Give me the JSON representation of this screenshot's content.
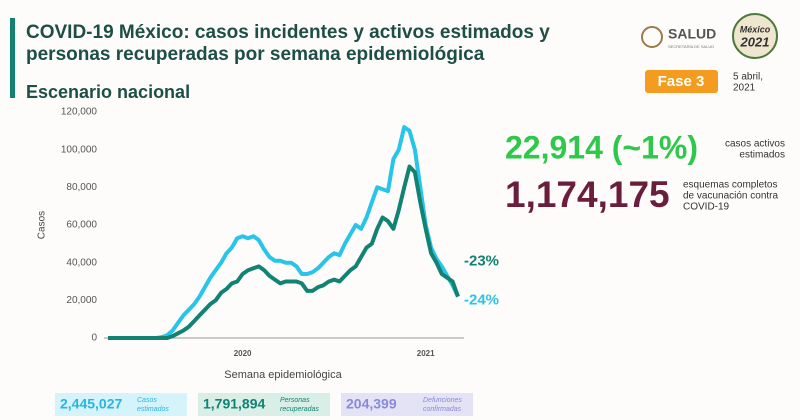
{
  "header": {
    "title_lines": [
      "COVID-19 México: casos incidentes y activos estimados y",
      "personas recuperadas por semana epidemiológica"
    ],
    "subtitle": "Escenario nacional",
    "logo": "SALUD",
    "logo_caption": "SECRETARÍA DE SALUD",
    "emblem_lines": [
      "México",
      "2021"
    ],
    "phase": "Fase 3",
    "date_lines": [
      "5 abril,",
      "2021"
    ]
  },
  "stats": [
    {
      "value": "22,914 (~1%)",
      "color": "#2ec84a",
      "caption_lines": [
        "casos activos",
        "estimados"
      ]
    },
    {
      "value": "1,174,175",
      "color": "#6b1e3c",
      "caption_lines": [
        "esquemas completos",
        "de vacunación contra",
        "COVID-19"
      ]
    }
  ],
  "footer": [
    {
      "value": "2,445,027",
      "caption_lines": [
        "Casos",
        "estimados"
      ],
      "color": "#2ab5de",
      "background": "#d5f3fb"
    },
    {
      "value": "1,791,894",
      "caption_lines": [
        "Personas",
        "recuperadas"
      ],
      "color": "#128273",
      "background": "#d8eee6"
    },
    {
      "value": "204,399",
      "caption_lines": [
        "Defunciones",
        "confirmadas"
      ],
      "color": "#8a8ad8",
      "background": "#e3e3f5"
    }
  ],
  "chart_data": {
    "type": "line",
    "x_label": "Semana epidemiológica",
    "y_label": "Casos",
    "categories": [
      null,
      null,
      null,
      null,
      null,
      null,
      null,
      null,
      null,
      null,
      null,
      null,
      null,
      null,
      null,
      null,
      null,
      null,
      null,
      null,
      null,
      null,
      null,
      null,
      null,
      "2020",
      null,
      null,
      null,
      null,
      null,
      null,
      null,
      null,
      null,
      null,
      null,
      null,
      null,
      null,
      null,
      null,
      null,
      null,
      null,
      null,
      null,
      null,
      null,
      null,
      null,
      null,
      null,
      null,
      null,
      null,
      null,
      null,
      null,
      "2021",
      null,
      null,
      null,
      null,
      null,
      null
    ],
    "ylim": [
      0,
      120000
    ],
    "yticks": [
      0,
      {
        "value": 20000,
        "label": "20,000"
      },
      {
        "value": 40000,
        "label": "40,000"
      },
      {
        "value": 60000,
        "label": "60,000"
      },
      {
        "value": 80000,
        "label": "80,000"
      },
      {
        "value": 100000,
        "label": "100,000"
      },
      {
        "value": 120000,
        "label": "120,000"
      }
    ],
    "grid": false,
    "series": [
      {
        "color": "#29c4ea",
        "end_label": "-24%",
        "values": [
          0,
          0,
          0,
          0,
          0,
          0,
          0,
          0,
          0,
          0,
          500,
          1500,
          4000,
          8000,
          12000,
          15000,
          18000,
          22000,
          27000,
          32000,
          36000,
          40000,
          45000,
          48000,
          53000,
          54000,
          53000,
          54000,
          52000,
          47000,
          43000,
          41000,
          41000,
          40000,
          40000,
          38000,
          34000,
          34000,
          35000,
          37000,
          40000,
          43000,
          45000,
          44000,
          50000,
          55000,
          60000,
          58000,
          64000,
          72000,
          80000,
          79000,
          78000,
          95000,
          100000,
          112000,
          110000,
          100000,
          80000,
          60000,
          48000,
          42000,
          38000,
          33000,
          28000,
          22000
        ]
      },
      {
        "color": "#128273",
        "end_label": "-23%",
        "values": [
          0,
          0,
          0,
          0,
          0,
          0,
          0,
          0,
          0,
          0,
          0,
          0,
          1000,
          2500,
          4000,
          6000,
          9000,
          12000,
          15000,
          18000,
          20000,
          24000,
          26000,
          29000,
          30000,
          34000,
          36000,
          37000,
          38000,
          36000,
          33000,
          31000,
          29000,
          30000,
          30000,
          30000,
          29000,
          25000,
          25000,
          27000,
          28000,
          30000,
          31000,
          30000,
          33000,
          36000,
          38000,
          43000,
          48000,
          50000,
          58000,
          64000,
          62000,
          58000,
          68000,
          80000,
          91000,
          88000,
          72000,
          58000,
          45000,
          40000,
          34000,
          32000,
          30000,
          22000
        ]
      }
    ]
  }
}
